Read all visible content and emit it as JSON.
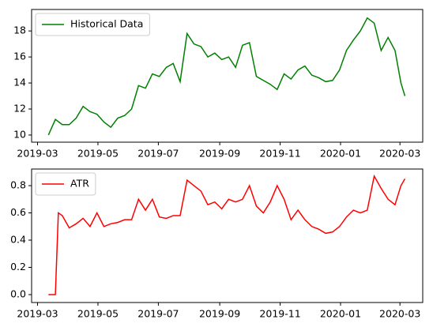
{
  "chart_data": [
    {
      "type": "line",
      "legend": "upper left",
      "xlim": [
        "2019-02-23",
        "2020-03-24"
      ],
      "xticks": [
        {
          "value": "2019-03-01",
          "label": "2019-03"
        },
        {
          "value": "2019-05-01",
          "label": "2019-05"
        },
        {
          "value": "2019-07-01",
          "label": "2019-07"
        },
        {
          "value": "2019-09-01",
          "label": "2019-09"
        },
        {
          "value": "2019-11-01",
          "label": "2019-11"
        },
        {
          "value": "2020-01-01",
          "label": "2020-01"
        },
        {
          "value": "2020-03-01",
          "label": "2020-03"
        }
      ],
      "ylim": [
        9.45,
        19.65
      ],
      "yticks": [
        10,
        12,
        14,
        16,
        18
      ],
      "x": [
        "2019-03-12",
        "2019-03-19",
        "2019-03-26",
        "2019-04-02",
        "2019-04-09",
        "2019-04-16",
        "2019-04-23",
        "2019-04-30",
        "2019-05-07",
        "2019-05-14",
        "2019-05-21",
        "2019-05-28",
        "2019-06-04",
        "2019-06-11",
        "2019-06-18",
        "2019-06-25",
        "2019-07-02",
        "2019-07-09",
        "2019-07-16",
        "2019-07-23",
        "2019-07-30",
        "2019-08-06",
        "2019-08-13",
        "2019-08-20",
        "2019-08-27",
        "2019-09-03",
        "2019-09-10",
        "2019-09-17",
        "2019-09-24",
        "2019-10-01",
        "2019-10-08",
        "2019-10-15",
        "2019-10-22",
        "2019-10-29",
        "2019-11-05",
        "2019-11-12",
        "2019-11-19",
        "2019-11-26",
        "2019-12-03",
        "2019-12-10",
        "2019-12-17",
        "2019-12-24",
        "2019-12-31",
        "2020-01-07",
        "2020-01-14",
        "2020-01-21",
        "2020-01-28",
        "2020-02-04",
        "2020-02-11",
        "2020-02-18",
        "2020-02-25",
        "2020-03-02",
        "2020-03-06"
      ],
      "series": [
        {
          "name": "Historical Data",
          "color": "#008000",
          "values": [
            10.0,
            11.2,
            10.8,
            10.8,
            11.3,
            12.2,
            11.8,
            11.6,
            11.0,
            10.6,
            11.3,
            11.5,
            12.0,
            13.8,
            13.6,
            14.7,
            14.5,
            15.2,
            15.5,
            14.1,
            17.8,
            17.0,
            16.8,
            16.0,
            16.3,
            15.8,
            16.0,
            15.2,
            16.9,
            17.1,
            14.5,
            14.2,
            13.9,
            13.5,
            14.7,
            14.3,
            15.0,
            15.3,
            14.6,
            14.4,
            14.1,
            14.2,
            15.0,
            16.5,
            17.3,
            18.0,
            19.0,
            18.6,
            16.5,
            17.5,
            16.5,
            14.0,
            13.0
          ]
        }
      ]
    },
    {
      "type": "line",
      "legend": "upper left",
      "xlim": [
        "2019-02-23",
        "2020-03-24"
      ],
      "xticks": [
        {
          "value": "2019-03-01",
          "label": "2019-03"
        },
        {
          "value": "2019-05-01",
          "label": "2019-05"
        },
        {
          "value": "2019-07-01",
          "label": "2019-07"
        },
        {
          "value": "2019-09-01",
          "label": "2019-09"
        },
        {
          "value": "2019-11-01",
          "label": "2019-11"
        },
        {
          "value": "2020-01-01",
          "label": "2020-01"
        },
        {
          "value": "2020-03-01",
          "label": "2020-03"
        }
      ],
      "ylim": [
        -0.058,
        0.922
      ],
      "yticks": [
        {
          "value": 0,
          "label": "0.0"
        },
        0.2,
        0.4,
        0.6,
        0.8
      ],
      "x": [
        "2019-03-12",
        "2019-03-19",
        "2019-03-22",
        "2019-03-26",
        "2019-04-02",
        "2019-04-09",
        "2019-04-16",
        "2019-04-23",
        "2019-04-30",
        "2019-05-07",
        "2019-05-14",
        "2019-05-21",
        "2019-05-28",
        "2019-06-04",
        "2019-06-11",
        "2019-06-18",
        "2019-06-25",
        "2019-07-02",
        "2019-07-09",
        "2019-07-16",
        "2019-07-23",
        "2019-07-30",
        "2019-08-06",
        "2019-08-13",
        "2019-08-20",
        "2019-08-27",
        "2019-09-03",
        "2019-09-10",
        "2019-09-17",
        "2019-09-24",
        "2019-10-01",
        "2019-10-08",
        "2019-10-15",
        "2019-10-22",
        "2019-10-29",
        "2019-11-05",
        "2019-11-12",
        "2019-11-19",
        "2019-11-26",
        "2019-12-03",
        "2019-12-10",
        "2019-12-17",
        "2019-12-24",
        "2019-12-31",
        "2020-01-07",
        "2020-01-14",
        "2020-01-21",
        "2020-01-28",
        "2020-02-04",
        "2020-02-11",
        "2020-02-18",
        "2020-02-25",
        "2020-03-02",
        "2020-03-06"
      ],
      "series": [
        {
          "name": "ATR",
          "color": "#ff0000",
          "values": [
            0,
            0,
            0.6,
            0.58,
            0.49,
            0.52,
            0.56,
            0.5,
            0.6,
            0.5,
            0.52,
            0.53,
            0.55,
            0.55,
            0.7,
            0.62,
            0.7,
            0.57,
            0.56,
            0.58,
            0.58,
            0.84,
            0.8,
            0.76,
            0.66,
            0.68,
            0.63,
            0.7,
            0.68,
            0.7,
            0.8,
            0.65,
            0.6,
            0.68,
            0.8,
            0.7,
            0.55,
            0.62,
            0.55,
            0.5,
            0.48,
            0.45,
            0.46,
            0.5,
            0.57,
            0.62,
            0.6,
            0.62,
            0.87,
            0.78,
            0.7,
            0.66,
            0.8,
            0.85
          ]
        }
      ]
    }
  ]
}
